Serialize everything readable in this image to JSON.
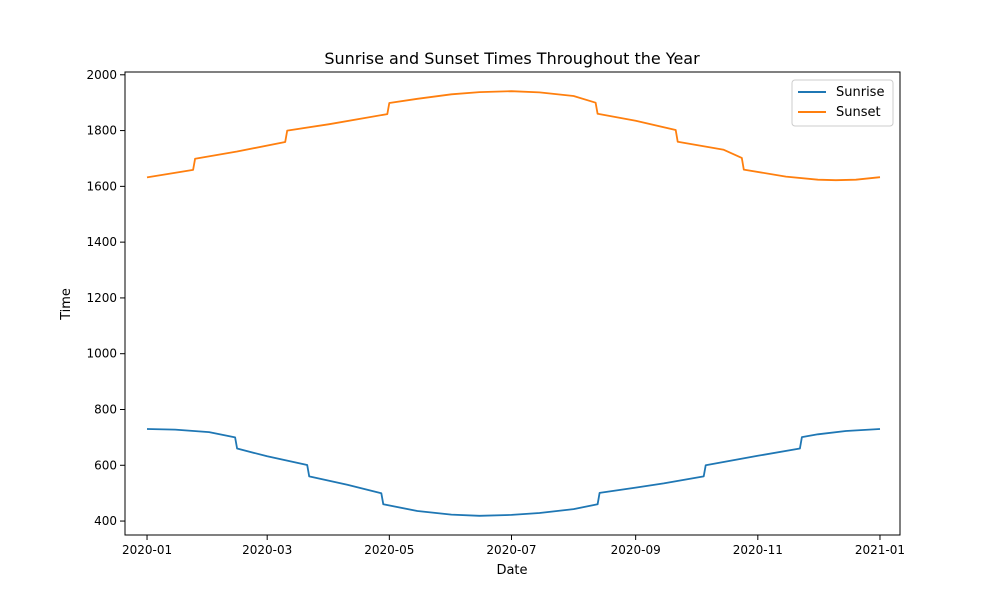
{
  "chart_data": {
    "type": "line",
    "title": "Sunrise and Sunset Times Throughout the Year",
    "xlabel": "Date",
    "ylabel": "Time",
    "xlim": [
      "2019-12-21",
      "2021-01-11"
    ],
    "ylim": [
      350,
      2010
    ],
    "x_ticks": [
      "2020-01",
      "2020-03",
      "2020-05",
      "2020-07",
      "2020-09",
      "2020-11",
      "2021-01"
    ],
    "y_ticks": [
      400,
      600,
      800,
      1000,
      1200,
      1400,
      1600,
      1800,
      2000
    ],
    "grid": false,
    "legend": "top-right",
    "series": [
      {
        "name": "Sunrise",
        "color": "#1f77b4",
        "points": [
          [
            "2020-01-01",
            730
          ],
          [
            "2020-01-15",
            728
          ],
          [
            "2020-02-01",
            719
          ],
          [
            "2020-02-14",
            700
          ],
          [
            "2020-02-15",
            660
          ],
          [
            "2020-03-01",
            632
          ],
          [
            "2020-03-21",
            601
          ],
          [
            "2020-03-22",
            560
          ],
          [
            "2020-04-10",
            530
          ],
          [
            "2020-04-27",
            500
          ],
          [
            "2020-04-28",
            460
          ],
          [
            "2020-05-15",
            436
          ],
          [
            "2020-06-01",
            423
          ],
          [
            "2020-06-15",
            419
          ],
          [
            "2020-07-01",
            422
          ],
          [
            "2020-07-15",
            429
          ],
          [
            "2020-08-01",
            443
          ],
          [
            "2020-08-13",
            460
          ],
          [
            "2020-08-14",
            501
          ],
          [
            "2020-09-01",
            520
          ],
          [
            "2020-09-15",
            535
          ],
          [
            "2020-10-05",
            560
          ],
          [
            "2020-10-06",
            600
          ],
          [
            "2020-11-01",
            634
          ],
          [
            "2020-11-22",
            660
          ],
          [
            "2020-11-23",
            701
          ],
          [
            "2020-12-01",
            711
          ],
          [
            "2020-12-15",
            723
          ],
          [
            "2021-01-01",
            730
          ]
        ]
      },
      {
        "name": "Sunset",
        "color": "#ff7f0e",
        "points": [
          [
            "2020-01-01",
            1632
          ],
          [
            "2020-01-24",
            1659
          ],
          [
            "2020-01-25",
            1699
          ],
          [
            "2020-02-15",
            1725
          ],
          [
            "2020-03-10",
            1759
          ],
          [
            "2020-03-11",
            1800
          ],
          [
            "2020-04-01",
            1823
          ],
          [
            "2020-04-30",
            1859
          ],
          [
            "2020-05-01",
            1899
          ],
          [
            "2020-05-15",
            1914
          ],
          [
            "2020-06-01",
            1930
          ],
          [
            "2020-06-15",
            1938
          ],
          [
            "2020-07-01",
            1941
          ],
          [
            "2020-07-15",
            1937
          ],
          [
            "2020-08-01",
            1924
          ],
          [
            "2020-08-12",
            1900
          ],
          [
            "2020-08-13",
            1860
          ],
          [
            "2020-09-01",
            1835
          ],
          [
            "2020-09-21",
            1802
          ],
          [
            "2020-09-22",
            1760
          ],
          [
            "2020-10-15",
            1731
          ],
          [
            "2020-10-24",
            1702
          ],
          [
            "2020-10-25",
            1660
          ],
          [
            "2020-11-15",
            1635
          ],
          [
            "2020-12-01",
            1624
          ],
          [
            "2020-12-10",
            1622
          ],
          [
            "2020-12-20",
            1624
          ],
          [
            "2021-01-01",
            1633
          ]
        ]
      }
    ]
  }
}
